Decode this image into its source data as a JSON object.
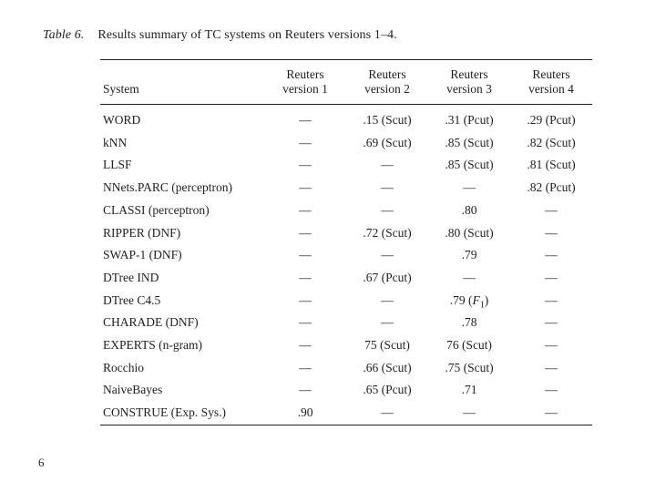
{
  "caption": {
    "label": "Table 6.",
    "text": "Results summary of TC systems on Reuters versions 1–4."
  },
  "table": {
    "columns": [
      {
        "id": "system",
        "label": "System"
      },
      {
        "id": "v1",
        "label": "Reuters\nversion 1"
      },
      {
        "id": "v2",
        "label": "Reuters\nversion 2"
      },
      {
        "id": "v3",
        "label": "Reuters\nversion 3"
      },
      {
        "id": "v4",
        "label": "Reuters\nversion 4"
      }
    ],
    "rows": [
      {
        "system": "WORD",
        "values": [
          "—",
          ".15 (Scut)",
          ".31 (Pcut)",
          ".29 (Pcut)"
        ]
      },
      {
        "system": "kNN",
        "values": [
          "—",
          ".69 (Scut)",
          ".85 (Scut)",
          ".82 (Scut)"
        ]
      },
      {
        "system": "LLSF",
        "values": [
          "—",
          "—",
          ".85 (Scut)",
          ".81 (Scut)"
        ]
      },
      {
        "system": "NNets.PARC (perceptron)",
        "values": [
          "—",
          "—",
          "—",
          ".82 (Pcut)"
        ]
      },
      {
        "system": "CLASSI (perceptron)",
        "values": [
          "—",
          "—",
          ".80",
          "—"
        ]
      },
      {
        "system": "RIPPER (DNF)",
        "values": [
          "—",
          ".72 (Scut)",
          ".80 (Scut)",
          "—"
        ]
      },
      {
        "system": "SWAP-1 (DNF)",
        "values": [
          "—",
          "—",
          ".79",
          "—"
        ]
      },
      {
        "system": "DTree IND",
        "values": [
          "—",
          ".67 (Pcut)",
          "—",
          "—"
        ]
      },
      {
        "system": "DTree C4.5",
        "values": [
          "—",
          "—",
          ".79 (F1)",
          "—"
        ]
      },
      {
        "system": "CHARADE (DNF)",
        "values": [
          "—",
          "—",
          ".78",
          "—"
        ]
      },
      {
        "system": "EXPERTS (n-gram)",
        "values": [
          "—",
          "75 (Scut)",
          "76 (Scut)",
          "—"
        ]
      },
      {
        "system": "Rocchio",
        "values": [
          "—",
          ".66 (Scut)",
          ".75 (Scut)",
          "—"
        ]
      },
      {
        "system": "NaiveBayes",
        "values": [
          "—",
          ".65 (Pcut)",
          ".71",
          "—"
        ]
      },
      {
        "system": "CONSTRUE (Exp. Sys.)",
        "values": [
          ".90",
          "—",
          "—",
          "—"
        ]
      }
    ]
  },
  "footer": {
    "page_number": "6"
  },
  "colors": {
    "text": "#1f1f1f",
    "rule": "#1f1f1f",
    "background": "#ffffff"
  }
}
